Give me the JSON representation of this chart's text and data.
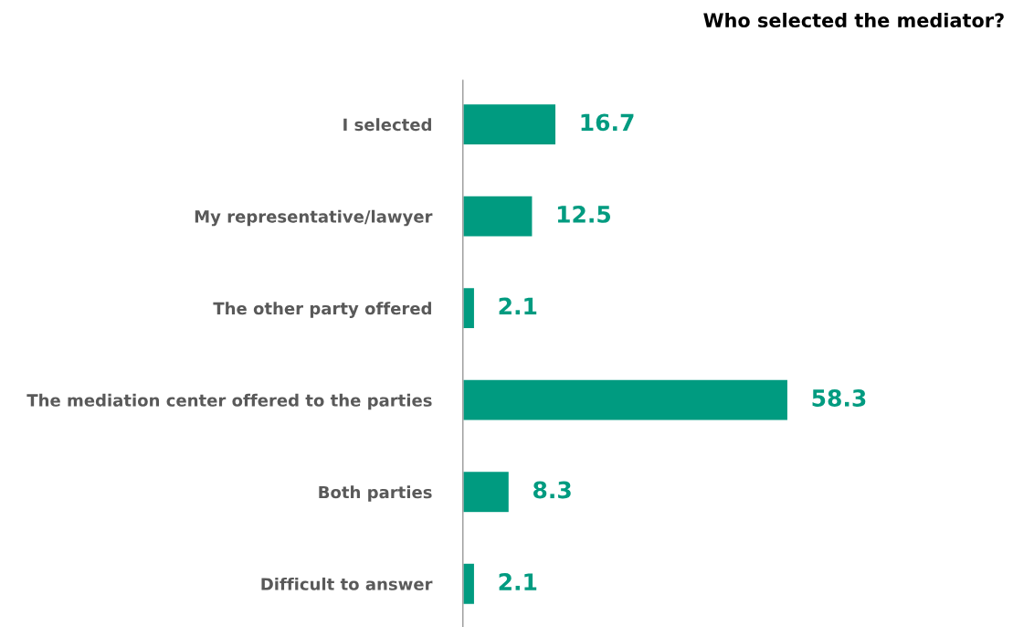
{
  "chart_data": {
    "type": "bar",
    "orientation": "horizontal",
    "title": "Who selected the mediator?",
    "categories": [
      "I selected",
      "My representative/lawyer",
      "The other party offered",
      "The mediation center offered to the parties",
      "Both parties",
      "Difficult to answer"
    ],
    "values": [
      16.7,
      12.5,
      2.1,
      58.3,
      8.3,
      2.1
    ],
    "color": "#009b80",
    "data_labels": true,
    "grid": false,
    "legend": false
  }
}
